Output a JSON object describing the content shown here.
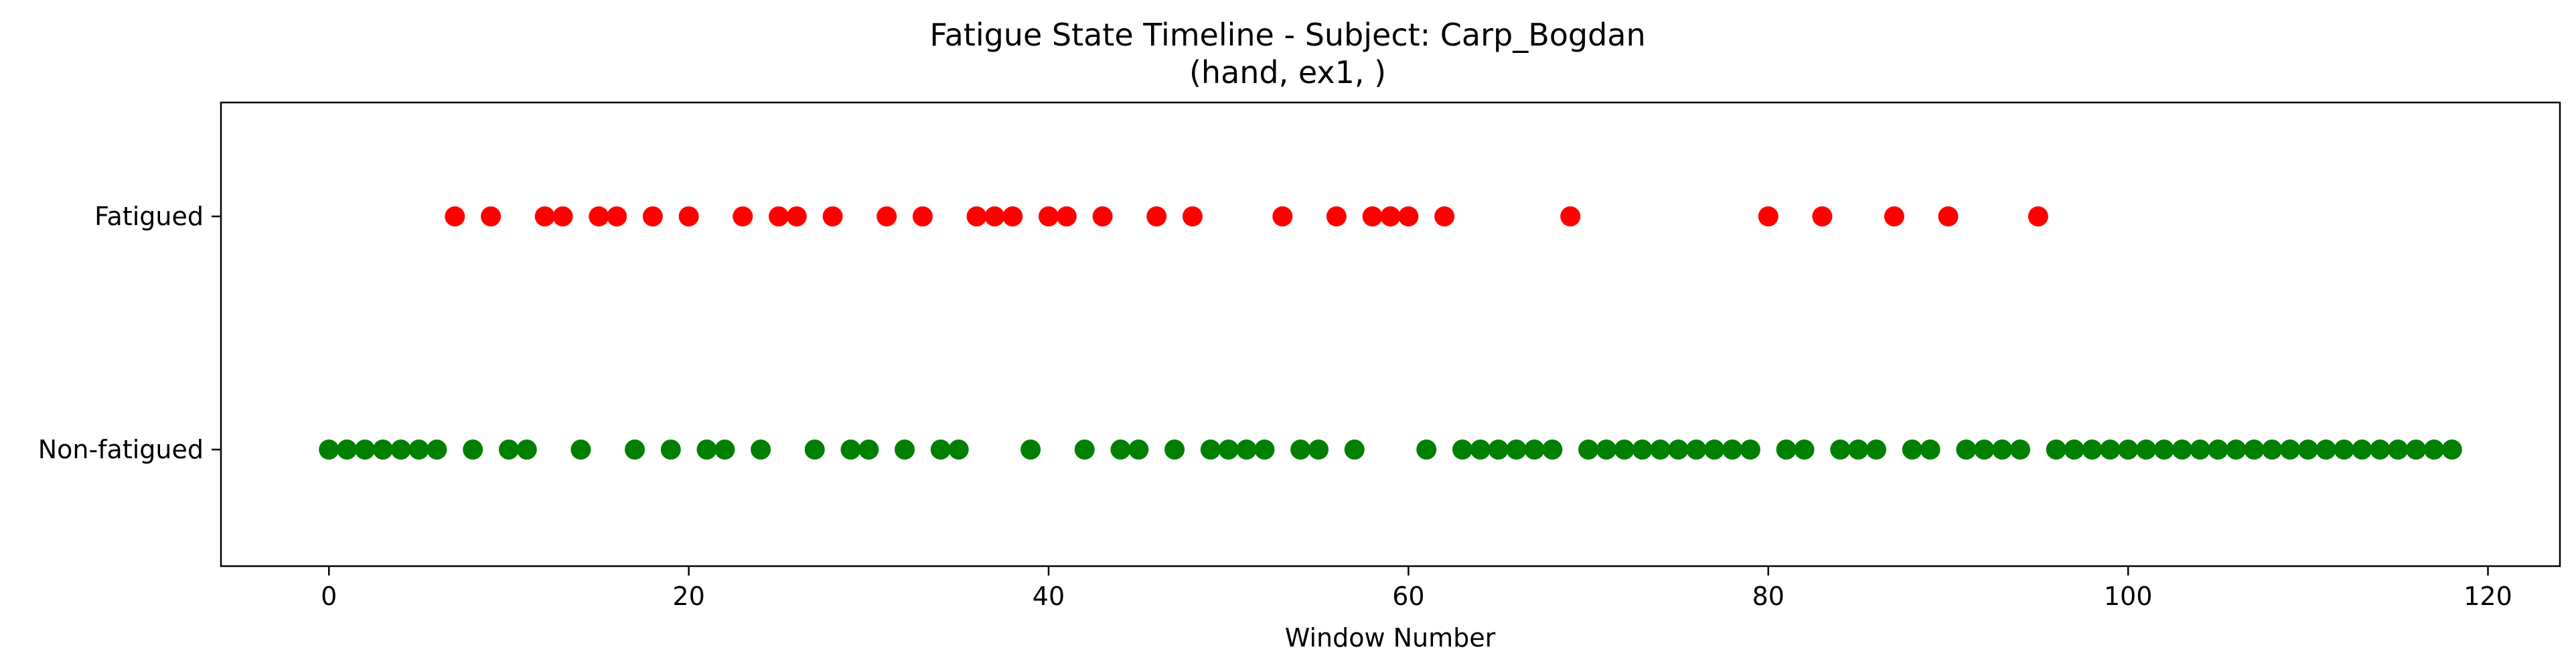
{
  "chart_data": {
    "type": "scatter",
    "title": "Fatigue State Timeline - Subject: Carp_Bogdan",
    "subtitle": "(hand, ex1, )",
    "xlabel": "Window Number",
    "ylabel": "",
    "xlim": [
      -6,
      124
    ],
    "xticks": [
      0,
      20,
      40,
      60,
      80,
      100,
      120
    ],
    "yticks": [
      "Non-fatigued",
      "Fatigued"
    ],
    "grid": false,
    "colors": {
      "Fatigued": "#ff0000",
      "Non-fatigued": "#008000"
    },
    "series": [
      {
        "category": "Fatigued",
        "x": [
          7,
          9,
          12,
          13,
          15,
          16,
          18,
          20,
          23,
          25,
          26,
          28,
          31,
          33,
          36,
          37,
          38,
          40,
          41,
          43,
          46,
          48,
          53,
          56,
          58,
          59,
          60,
          62,
          69,
          80,
          83,
          87,
          90,
          95
        ]
      },
      {
        "category": "Non-fatigued",
        "x": [
          0,
          1,
          2,
          3,
          4,
          5,
          6,
          8,
          10,
          11,
          14,
          17,
          19,
          21,
          22,
          24,
          27,
          29,
          30,
          32,
          34,
          35,
          39,
          42,
          44,
          45,
          47,
          49,
          50,
          51,
          52,
          54,
          55,
          57,
          61,
          63,
          64,
          65,
          66,
          67,
          68,
          70,
          71,
          72,
          73,
          74,
          75,
          76,
          77,
          78,
          79,
          81,
          82,
          84,
          85,
          86,
          88,
          89,
          91,
          92,
          93,
          94,
          96,
          97,
          98,
          99,
          100,
          101,
          102,
          103,
          104,
          105,
          106,
          107,
          108,
          109,
          110,
          111,
          112,
          113,
          114,
          115,
          116,
          117,
          118
        ]
      }
    ]
  }
}
